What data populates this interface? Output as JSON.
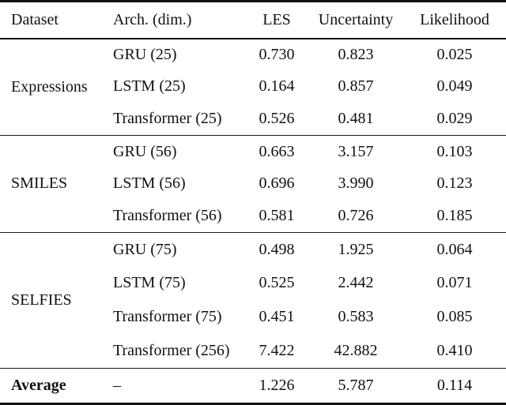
{
  "table": {
    "headers": {
      "dataset": "Dataset",
      "arch": "Arch. (dim.)",
      "les": "LES",
      "uncertainty": "Uncertainty",
      "likelihood": "Likelihood"
    },
    "groups": [
      {
        "dataset": "Expressions",
        "rows": [
          {
            "arch": "GRU (25)",
            "les": "0.730",
            "uncertainty": "0.823",
            "likelihood": "0.025"
          },
          {
            "arch": "LSTM (25)",
            "les": "0.164",
            "uncertainty": "0.857",
            "likelihood": "0.049"
          },
          {
            "arch": "Transformer (25)",
            "les": "0.526",
            "uncertainty": "0.481",
            "likelihood": "0.029"
          }
        ]
      },
      {
        "dataset": "SMILES",
        "rows": [
          {
            "arch": "GRU (56)",
            "les": "0.663",
            "uncertainty": "3.157",
            "likelihood": "0.103"
          },
          {
            "arch": "LSTM (56)",
            "les": "0.696",
            "uncertainty": "3.990",
            "likelihood": "0.123"
          },
          {
            "arch": "Transformer (56)",
            "les": "0.581",
            "uncertainty": "0.726",
            "likelihood": "0.185"
          }
        ]
      },
      {
        "dataset": "SELFIES",
        "rows": [
          {
            "arch": "GRU (75)",
            "les": "0.498",
            "uncertainty": "1.925",
            "likelihood": "0.064"
          },
          {
            "arch": "LSTM (75)",
            "les": "0.525",
            "uncertainty": "2.442",
            "likelihood": "0.071"
          },
          {
            "arch": "Transformer (75)",
            "les": "0.451",
            "uncertainty": "0.583",
            "likelihood": "0.085"
          },
          {
            "arch": "Transformer (256)",
            "les": "7.422",
            "uncertainty": "42.882",
            "likelihood": "0.410"
          }
        ]
      }
    ],
    "footer": {
      "dataset": "Average",
      "arch": "–",
      "les": "1.226",
      "uncertainty": "5.787",
      "likelihood": "0.114"
    }
  }
}
